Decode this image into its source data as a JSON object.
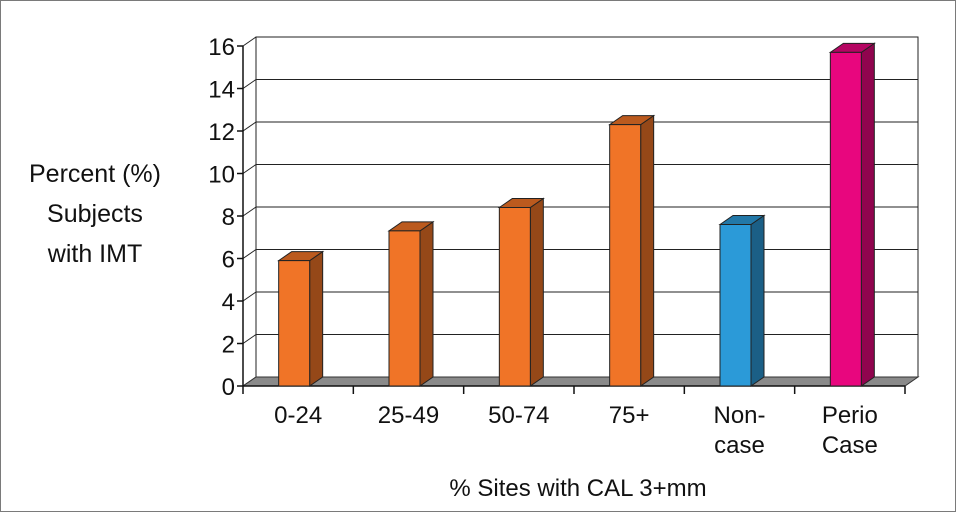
{
  "chart_data": {
    "type": "bar",
    "title": "",
    "ylabel_lines": [
      "Percent (%)",
      "Subjects",
      "with IMT"
    ],
    "xlabel": "% Sites with CAL 3+mm",
    "ylim": [
      0,
      16
    ],
    "yticks": [
      0,
      2,
      4,
      6,
      8,
      10,
      12,
      14,
      16
    ],
    "grid": true,
    "categories": [
      [
        "0-24"
      ],
      [
        "25-49"
      ],
      [
        "50-74"
      ],
      [
        "75+"
      ],
      [
        "Non-",
        "case"
      ],
      [
        "Perio",
        "Case"
      ]
    ],
    "values": [
      5.9,
      7.3,
      8.4,
      12.3,
      7.6,
      15.7
    ],
    "bar_colors": [
      "#f07427",
      "#f07427",
      "#f07427",
      "#f07427",
      "#2b9ad8",
      "#e8067e"
    ]
  }
}
